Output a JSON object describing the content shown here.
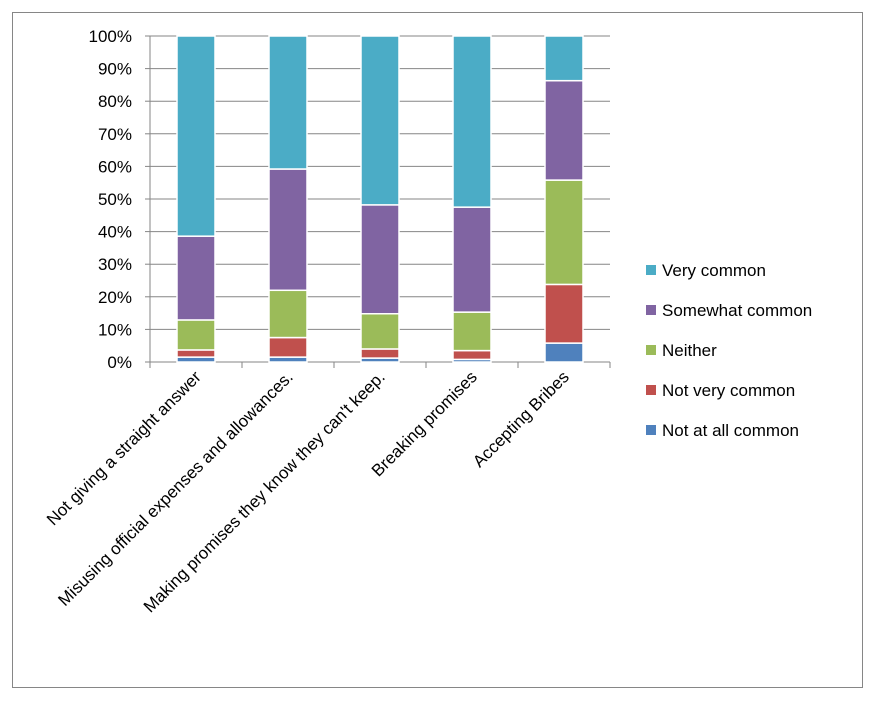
{
  "chart_data": {
    "type": "bar",
    "stacked": true,
    "percent": true,
    "title": "",
    "xlabel": "",
    "ylabel": "",
    "ylim": [
      0,
      100
    ],
    "yticks": [
      "0%",
      "10%",
      "20%",
      "30%",
      "40%",
      "50%",
      "60%",
      "70%",
      "80%",
      "90%",
      "100%"
    ],
    "grid": true,
    "legend_position": "right",
    "categories": [
      "Not giving a straight answer",
      "Misusing official expenses and allowances.",
      "Making promises they know they can't keep.",
      "Breaking promises",
      "Accepting Bribes"
    ],
    "series": [
      {
        "name": "Not at all common",
        "color": "#4F81BD",
        "values": [
          1.5,
          1.5,
          1.2,
          0.8,
          5.8
        ]
      },
      {
        "name": "Not very common",
        "color": "#C0504D",
        "values": [
          2.2,
          6.0,
          2.8,
          2.7,
          18.0
        ]
      },
      {
        "name": "Neither",
        "color": "#9BBB59",
        "values": [
          9.2,
          14.5,
          10.8,
          11.8,
          32.0
        ]
      },
      {
        "name": "Somewhat common",
        "color": "#8064A2",
        "values": [
          25.7,
          37.2,
          33.4,
          32.2,
          30.5
        ]
      },
      {
        "name": "Very common",
        "color": "#4BACC6",
        "values": [
          61.4,
          40.8,
          51.8,
          52.5,
          13.7
        ]
      }
    ]
  }
}
